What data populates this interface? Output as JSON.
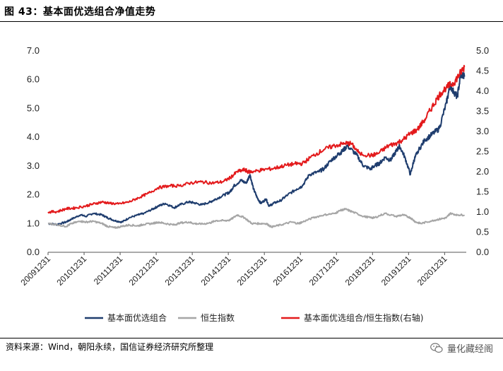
{
  "header": {
    "title": "图 43：基本面优选组合净值走势"
  },
  "footer": {
    "source": "资料来源：Wind，朝阳永续，国信证券经济研究所整理",
    "watermark": "量化藏经阁",
    "watermark_icon": "wechat-icon"
  },
  "chart_data": {
    "type": "line",
    "title": "图 43：基本面优选组合净值走势",
    "x": [
      "20091231",
      "20101231",
      "20111231",
      "20121231",
      "20131231",
      "20141231",
      "20151231",
      "20161231",
      "20171231",
      "20181231",
      "20191231",
      "20201231"
    ],
    "xlim": [
      2009.95,
      2021.55
    ],
    "left_axis": {
      "ylim": [
        0,
        7
      ],
      "ticks": [
        "0.0",
        "1.0",
        "2.0",
        "3.0",
        "4.0",
        "5.0",
        "6.0",
        "7.0"
      ]
    },
    "right_axis": {
      "ylim": [
        0,
        5
      ],
      "ticks": [
        "0.0",
        "0.5",
        "1.0",
        "1.5",
        "2.0",
        "2.5",
        "3.0",
        "3.5",
        "4.0",
        "4.5",
        "5.0"
      ]
    },
    "legend_position": "bottom",
    "grid": false,
    "series": [
      {
        "name": "基本面优选组合",
        "axis": "left",
        "color": "#1f3d6e",
        "x": [
          2009.95,
          2010.2,
          2010.45,
          2010.6,
          2010.85,
          2011.0,
          2011.2,
          2011.45,
          2011.6,
          2011.8,
          2012.0,
          2012.2,
          2012.45,
          2012.6,
          2012.85,
          2013.0,
          2013.2,
          2013.45,
          2013.6,
          2013.85,
          2014.0,
          2014.2,
          2014.45,
          2014.6,
          2014.85,
          2015.0,
          2015.1,
          2015.3,
          2015.45,
          2015.55,
          2015.65,
          2015.75,
          2015.85,
          2016.0,
          2016.08,
          2016.2,
          2016.4,
          2016.6,
          2016.85,
          2017.0,
          2017.2,
          2017.45,
          2017.6,
          2017.8,
          2018.0,
          2018.1,
          2018.25,
          2018.5,
          2018.7,
          2018.9,
          2019.0,
          2019.15,
          2019.3,
          2019.45,
          2019.6,
          2019.7,
          2019.85,
          2020.0,
          2020.1,
          2020.2,
          2020.4,
          2020.6,
          2020.8,
          2021.0,
          2021.1,
          2021.2,
          2021.3,
          2021.4,
          2021.5
        ],
        "values": [
          1.0,
          0.97,
          1.05,
          1.15,
          1.3,
          1.25,
          1.35,
          1.3,
          1.2,
          1.1,
          1.05,
          1.2,
          1.3,
          1.35,
          1.5,
          1.6,
          1.7,
          1.55,
          1.65,
          1.75,
          1.72,
          1.65,
          1.75,
          1.85,
          2.0,
          2.1,
          2.3,
          2.5,
          2.4,
          2.7,
          2.2,
          1.9,
          1.7,
          1.85,
          1.6,
          1.7,
          1.8,
          2.0,
          2.2,
          2.3,
          2.7,
          2.8,
          2.9,
          3.2,
          3.4,
          3.5,
          3.7,
          3.4,
          3.0,
          2.9,
          3.0,
          3.1,
          3.3,
          3.2,
          3.5,
          3.7,
          3.3,
          2.7,
          3.2,
          3.5,
          3.9,
          4.1,
          4.3,
          5.2,
          5.8,
          5.6,
          5.4,
          6.2,
          6.1
        ]
      },
      {
        "name": "恒生指数",
        "axis": "left",
        "color": "#a6a6a6",
        "x": [
          2009.95,
          2010.2,
          2010.45,
          2010.6,
          2010.85,
          2011.0,
          2011.2,
          2011.45,
          2011.6,
          2011.8,
          2012.0,
          2012.2,
          2012.45,
          2012.6,
          2012.85,
          2013.0,
          2013.2,
          2013.45,
          2013.6,
          2013.85,
          2014.0,
          2014.2,
          2014.45,
          2014.6,
          2014.85,
          2015.0,
          2015.2,
          2015.4,
          2015.6,
          2015.8,
          2016.0,
          2016.15,
          2016.4,
          2016.7,
          2016.9,
          2017.0,
          2017.3,
          2017.6,
          2017.9,
          2018.05,
          2018.2,
          2018.4,
          2018.7,
          2018.9,
          2019.0,
          2019.3,
          2019.6,
          2019.8,
          2020.0,
          2020.15,
          2020.3,
          2020.6,
          2020.8,
          2021.0,
          2021.1,
          2021.3,
          2021.5
        ],
        "values": [
          1.0,
          0.96,
          0.9,
          1.0,
          1.08,
          1.05,
          1.08,
          1.0,
          0.9,
          0.85,
          0.9,
          0.95,
          0.92,
          0.97,
          1.0,
          1.05,
          1.0,
          0.95,
          1.02,
          1.05,
          1.0,
          0.98,
          1.02,
          1.1,
          1.1,
          1.12,
          1.3,
          1.2,
          1.0,
          1.0,
          1.0,
          0.88,
          0.95,
          1.05,
          1.0,
          1.05,
          1.2,
          1.3,
          1.35,
          1.45,
          1.5,
          1.4,
          1.25,
          1.2,
          1.2,
          1.35,
          1.25,
          1.3,
          1.2,
          1.05,
          1.0,
          1.1,
          1.15,
          1.2,
          1.35,
          1.3,
          1.3
        ]
      },
      {
        "name": "基本面优选组合/恒生指数(右轴)",
        "axis": "right",
        "color": "#e31a1c",
        "x": [
          2009.95,
          2010.2,
          2010.45,
          2010.7,
          2011.0,
          2011.2,
          2011.45,
          2011.65,
          2011.9,
          2012.2,
          2012.45,
          2012.7,
          2013.0,
          2013.3,
          2013.6,
          2013.9,
          2014.2,
          2014.5,
          2014.8,
          2015.0,
          2015.2,
          2015.4,
          2015.5,
          2015.65,
          2015.9,
          2016.2,
          2016.5,
          2016.8,
          2017.0,
          2017.3,
          2017.6,
          2017.9,
          2018.2,
          2018.35,
          2018.6,
          2018.9,
          2019.1,
          2019.4,
          2019.6,
          2019.8,
          2020.0,
          2020.2,
          2020.4,
          2020.6,
          2020.8,
          2021.0,
          2021.2,
          2021.35,
          2021.5
        ],
        "values": [
          1.0,
          1.01,
          1.08,
          1.1,
          1.15,
          1.2,
          1.25,
          1.22,
          1.2,
          1.25,
          1.35,
          1.45,
          1.6,
          1.65,
          1.65,
          1.72,
          1.75,
          1.72,
          1.75,
          1.85,
          2.0,
          2.05,
          2.0,
          2.0,
          2.05,
          2.08,
          2.15,
          2.2,
          2.2,
          2.4,
          2.55,
          2.65,
          2.7,
          2.7,
          2.45,
          2.4,
          2.45,
          2.65,
          2.7,
          2.8,
          2.95,
          3.05,
          3.3,
          3.6,
          3.9,
          4.1,
          4.2,
          4.4,
          4.6
        ]
      }
    ]
  }
}
